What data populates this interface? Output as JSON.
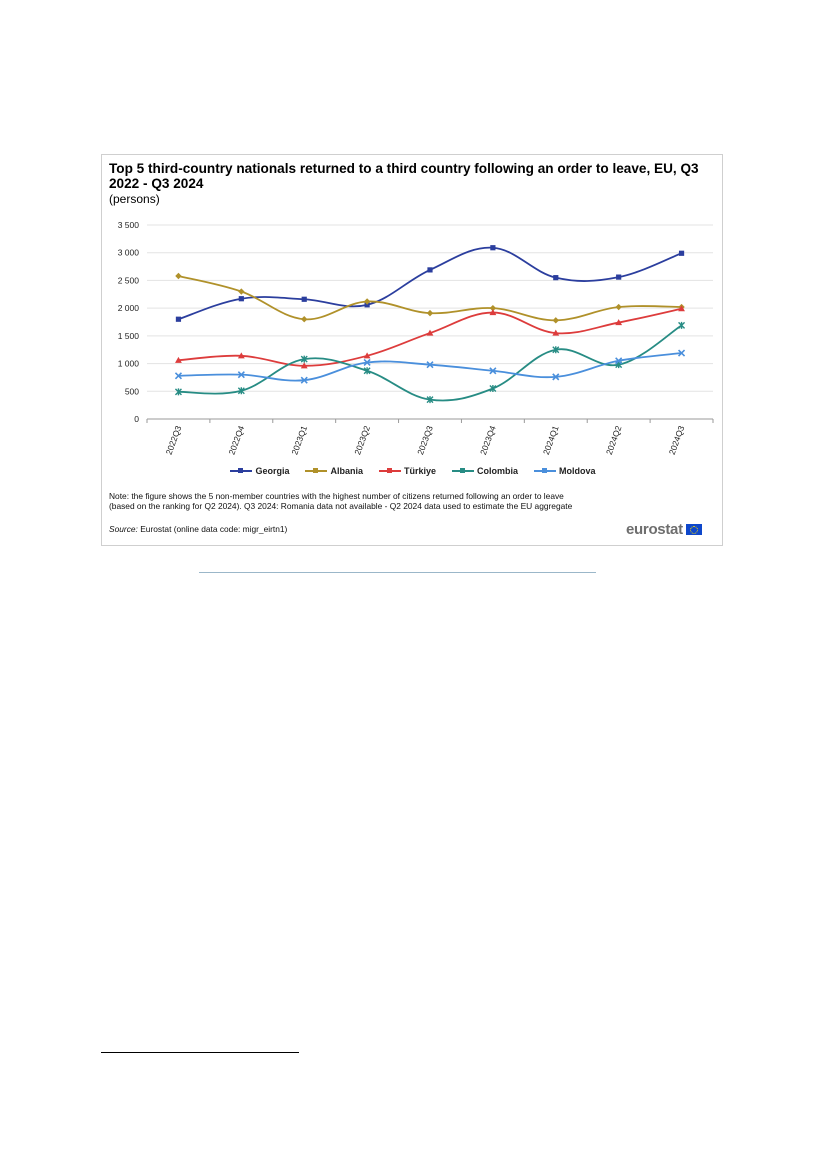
{
  "chart_data": {
    "type": "line",
    "title": "Top 5 third-country nationals returned to a third country following an order to leave, EU, Q3 2022 - Q3 2024",
    "subtitle": "(persons)",
    "xlabel": "",
    "ylabel": "",
    "ylim": [
      0,
      3500
    ],
    "yticks": [
      {
        "value": 0,
        "label": "0"
      },
      {
        "value": 500,
        "label": "500"
      },
      {
        "value": 1000,
        "label": "1 000"
      },
      {
        "value": 1500,
        "label": "1 500"
      },
      {
        "value": 2000,
        "label": "2 000"
      },
      {
        "value": 2500,
        "label": "2 500"
      },
      {
        "value": 3000,
        "label": "3 000"
      },
      {
        "value": 3500,
        "label": "3 500"
      }
    ],
    "grid": true,
    "legend_position": "bottom",
    "categories": [
      "2022Q3",
      "2022Q4",
      "2023Q1",
      "2023Q2",
      "2023Q3",
      "2023Q4",
      "2024Q1",
      "2024Q2",
      "2024Q3"
    ],
    "series": [
      {
        "name": "Georgia",
        "color": "#2b3e9e",
        "marker": "square",
        "values": [
          1800,
          2170,
          2160,
          2060,
          2690,
          3090,
          2550,
          2560,
          2990
        ]
      },
      {
        "name": "Albania",
        "color": "#b0912a",
        "marker": "diamond",
        "values": [
          2580,
          2300,
          1800,
          2120,
          1910,
          2000,
          1780,
          2020,
          2020
        ]
      },
      {
        "name": "Türkiye",
        "color": "#dd3c3c",
        "marker": "triangle",
        "values": [
          1060,
          1140,
          960,
          1140,
          1550,
          1920,
          1550,
          1740,
          1990
        ]
      },
      {
        "name": "Colombia",
        "color": "#278c84",
        "marker": "star",
        "values": [
          490,
          510,
          1080,
          870,
          350,
          550,
          1250,
          980,
          1690
        ]
      },
      {
        "name": "Moldova",
        "color": "#4a8fdc",
        "marker": "cross",
        "values": [
          780,
          800,
          700,
          1020,
          980,
          870,
          760,
          1050,
          1190
        ]
      }
    ]
  },
  "notes": {
    "note_text": "Note: the figure shows the 5 non-member countries with the highest number of citizens returned following an order to leave (based on the ranking for Q2 2024). Q3 2024: Romania data not available - Q2 2024 data used to estimate the EU aggregate",
    "source_label": "Source:",
    "source_text": "Eurostat (online data code: migr_eirtn1)"
  },
  "brand": {
    "name": "eurostat"
  }
}
